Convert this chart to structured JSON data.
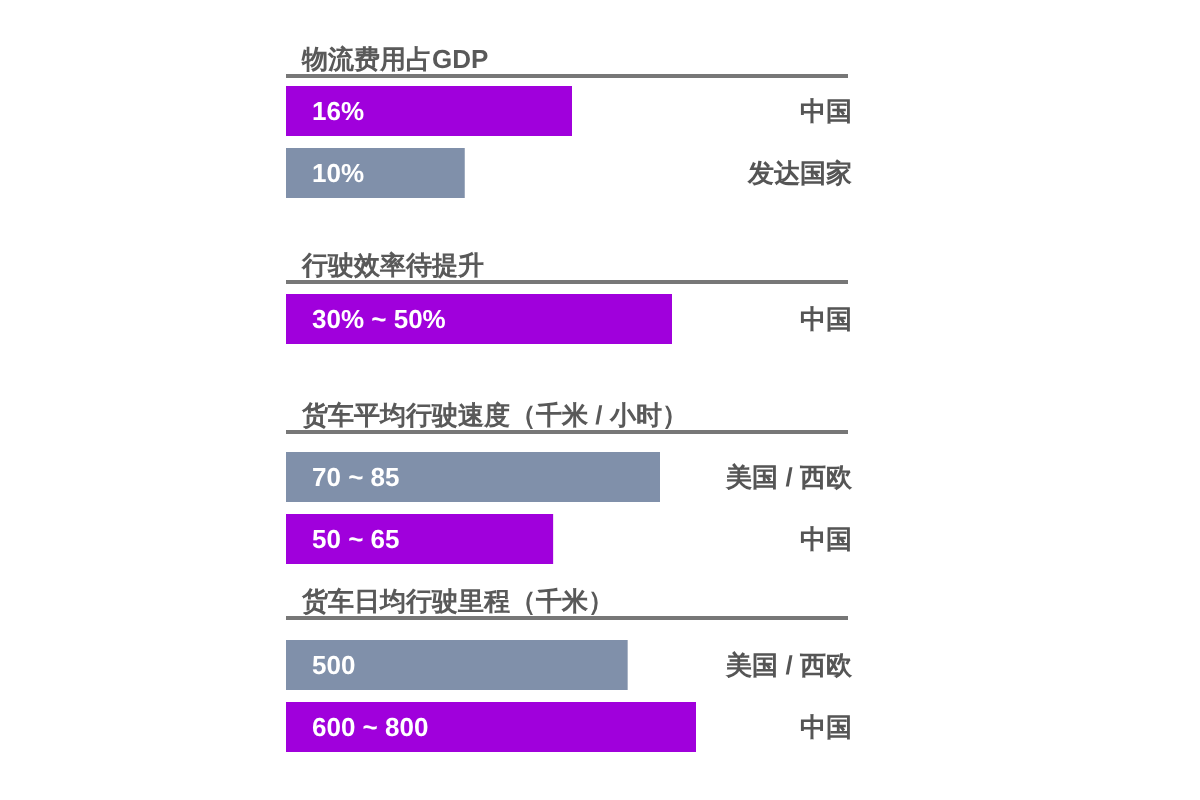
{
  "chart_data": [
    {
      "type": "bar",
      "orientation": "horizontal",
      "title": "物流费用占GDP",
      "categories": [
        "中国",
        "发达国家"
      ],
      "values": [
        16,
        10
      ],
      "colors": [
        "#a000dc",
        "#8090aa"
      ],
      "value_labels": [
        "16%",
        "10%"
      ]
    },
    {
      "type": "bar",
      "orientation": "horizontal",
      "title": "行驶效率待提升",
      "categories": [
        "中国"
      ],
      "values": [
        30
      ],
      "colors": [
        "#a000dc"
      ],
      "value_labels": [
        "30% ~ 50%"
      ]
    },
    {
      "type": "bar",
      "orientation": "horizontal",
      "title": "货车平均行驶速度（千米 / 小时）",
      "categories": [
        "美国 / 西欧",
        "中国"
      ],
      "values": [
        70,
        50
      ],
      "colors": [
        "#8090aa",
        "#a000dc"
      ],
      "value_labels": [
        "70 ~ 85",
        "50 ~ 65"
      ]
    },
    {
      "type": "bar",
      "orientation": "horizontal",
      "title": "货车日均行驶里程（千米）",
      "categories": [
        "美国 / 西欧",
        "中国"
      ],
      "values": [
        500,
        600
      ],
      "colors": [
        "#8090aa",
        "#a000dc"
      ],
      "value_labels": [
        "500",
        "600 ~ 800"
      ]
    }
  ]
}
